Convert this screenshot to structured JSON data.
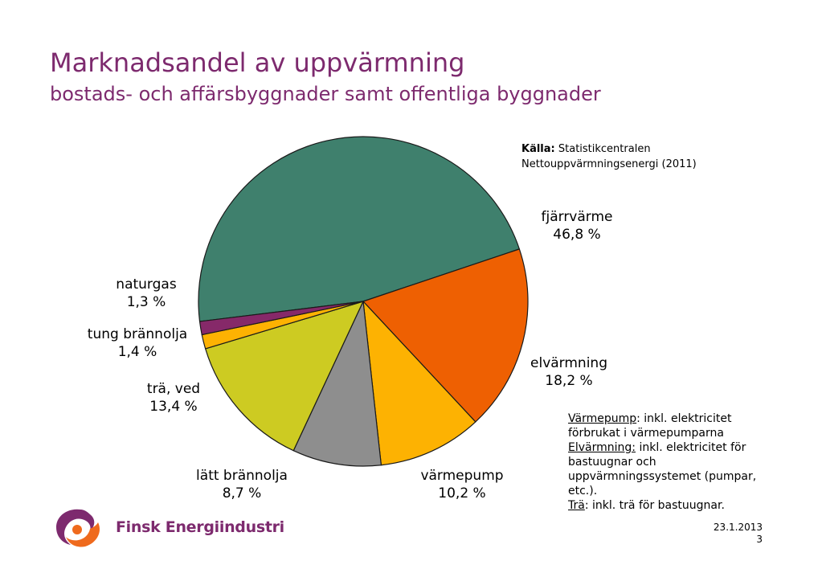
{
  "header": {
    "title": "Marknadsandel av uppvärmning",
    "subtitle": "bostads- och affärsbyggnader samt offentliga byggnader"
  },
  "source": {
    "label": "Källa:",
    "line1": "Statistikcentralen",
    "line2": "Nettouppvärmningsenergi (2011)"
  },
  "notes": {
    "n1_term": "Värmepump",
    "n1_text": ": inkl. elektricitet förbrukat i värmepumparna",
    "n2_term": "Elvärmning:",
    "n2_text": " inkl. elektricitet för bastuugnar och uppvärmningssystemet (pumpar, etc.).",
    "n3_term": "Trä",
    "n3_text": ": inkl. trä för bastuugnar."
  },
  "footer": {
    "date": "23.1.2013",
    "page": "3",
    "logo_text": "Finsk Energiindustri"
  },
  "colors": {
    "title": "#7d2a6e",
    "logo_orange": "#ef6a1d",
    "logo_purple": "#7d2a6e"
  },
  "chart_data": {
    "type": "pie",
    "slices": [
      {
        "name": "fjärrvärme",
        "value": 46.8,
        "label_value": "46,8 %",
        "color": "#3f806d"
      },
      {
        "name": "elvärmning",
        "value": 18.2,
        "label_value": "18,2 %",
        "color": "#ee6002"
      },
      {
        "name": "värmepump",
        "value": 10.2,
        "label_value": "10,2 %",
        "color": "#fdb202"
      },
      {
        "name": "lätt brännolja",
        "value": 8.7,
        "label_value": "8,7 %",
        "color": "#8e8e8e"
      },
      {
        "name": "trä, ved",
        "value": 13.4,
        "label_value": "13,4 %",
        "color": "#cdcb22"
      },
      {
        "name": "tung brännolja",
        "value": 1.4,
        "label_value": "1,4 %",
        "color": "#fdb202"
      },
      {
        "name": "naturgas",
        "value": 1.3,
        "label_value": "1,3 %",
        "color": "#862969"
      }
    ]
  }
}
